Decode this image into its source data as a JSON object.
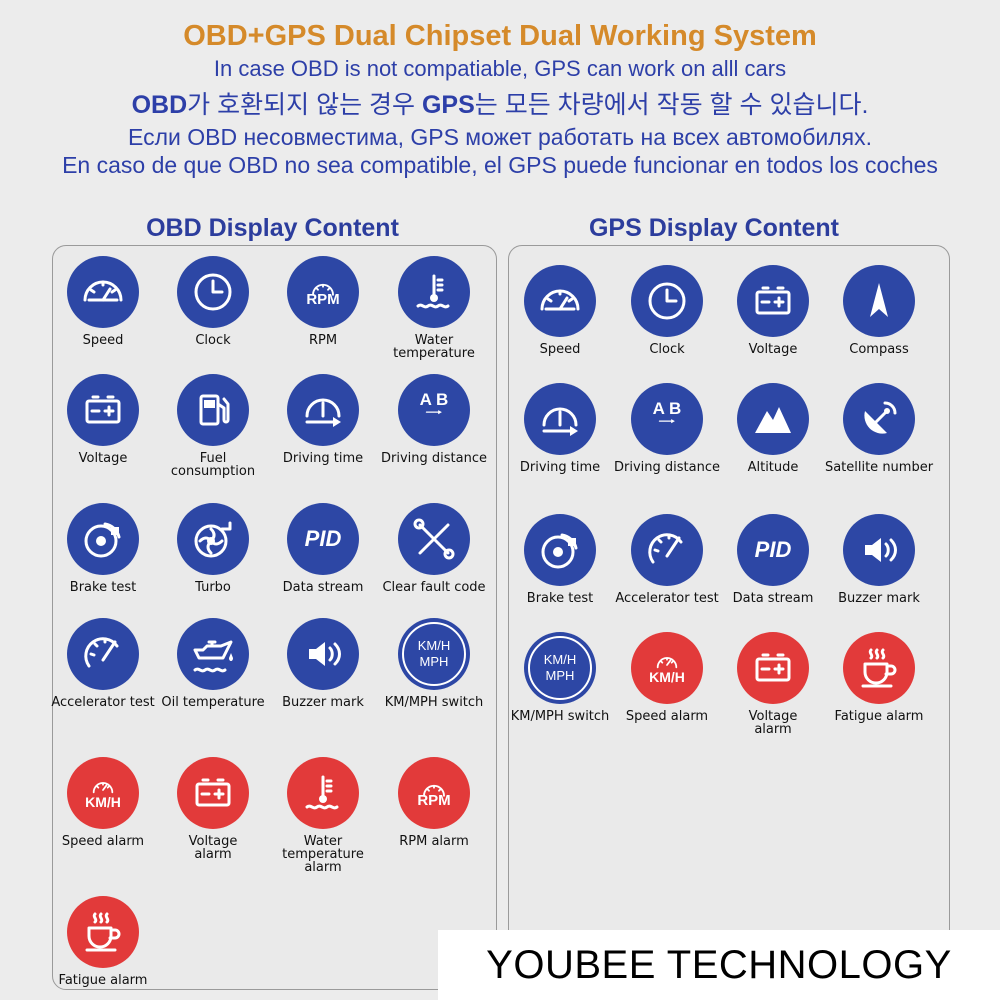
{
  "header": {
    "title": "OBD+GPS Dual Chipset Dual Working System",
    "line_en": "In case OBD is not compatiable, GPS can work on alll cars",
    "line_ko_1": "OBD",
    "line_ko_2": "가 호환되지 않는 경우 ",
    "line_ko_3": "GPS",
    "line_ko_4": "는 모든 차량에서 작동 할 수 있습니다.",
    "line_ru": "Если OBD несовместима, GPS может работать на всех автомобилях.",
    "line_es": "En caso de que OBD no sea compatible, el GPS puede funcionar en todos los coches"
  },
  "obd": {
    "title": "OBD Display Content",
    "items": [
      {
        "label": "Speed",
        "icon": "speedometer-icon",
        "color": "blue"
      },
      {
        "label": "Clock",
        "icon": "clock-icon",
        "color": "blue"
      },
      {
        "label": "RPM",
        "icon": "rpm-gauge-icon",
        "color": "blue"
      },
      {
        "label": "Water\ntemperature",
        "icon": "water-temperature-icon",
        "color": "blue"
      },
      {
        "label": "Voltage",
        "icon": "battery-icon",
        "color": "blue"
      },
      {
        "label": "Fuel\nconsumption",
        "icon": "fuel-pump-icon",
        "color": "blue"
      },
      {
        "label": "Driving time",
        "icon": "driving-time-icon",
        "color": "blue"
      },
      {
        "label": "Driving distance",
        "icon": "ab-distance-icon",
        "color": "blue"
      },
      {
        "label": "Brake test",
        "icon": "brake-disc-icon",
        "color": "blue"
      },
      {
        "label": "Turbo",
        "icon": "turbo-icon",
        "color": "blue"
      },
      {
        "label": "Data stream",
        "icon": "pid-icon",
        "color": "blue"
      },
      {
        "label": "Clear fault code",
        "icon": "wrench-cross-icon",
        "color": "blue"
      },
      {
        "label": "Accelerator test",
        "icon": "accelerator-gauge-icon",
        "color": "blue"
      },
      {
        "label": "Oil temperature",
        "icon": "oil-can-icon",
        "color": "blue"
      },
      {
        "label": "Buzzer mark",
        "icon": "speaker-icon",
        "color": "blue"
      },
      {
        "label": "KM/MPH switch",
        "icon": "kmh-mph-icon",
        "color": "blue"
      },
      {
        "label": "Speed alarm",
        "icon": "speed-alarm-icon",
        "color": "red"
      },
      {
        "label": "Voltage\nalarm",
        "icon": "battery-icon",
        "color": "red"
      },
      {
        "label": "Water\ntemperature alarm",
        "icon": "water-temperature-icon",
        "color": "red"
      },
      {
        "label": "RPM alarm",
        "icon": "rpm-gauge-icon",
        "color": "red"
      },
      {
        "label": "Fatigue alarm",
        "icon": "coffee-cup-icon",
        "color": "red"
      }
    ]
  },
  "gps": {
    "title": "GPS Display Content",
    "items": [
      {
        "label": "Speed",
        "icon": "speedometer-icon",
        "color": "blue"
      },
      {
        "label": "Clock",
        "icon": "clock-icon",
        "color": "blue"
      },
      {
        "label": "Voltage",
        "icon": "battery-icon",
        "color": "blue"
      },
      {
        "label": "Compass",
        "icon": "compass-icon",
        "color": "blue"
      },
      {
        "label": "Driving time",
        "icon": "driving-time-icon",
        "color": "blue"
      },
      {
        "label": "Driving distance",
        "icon": "ab-distance-icon",
        "color": "blue"
      },
      {
        "label": "Altitude",
        "icon": "mountain-icon",
        "color": "blue"
      },
      {
        "label": "Satellite number",
        "icon": "satellite-dish-icon",
        "color": "blue"
      },
      {
        "label": "Brake test",
        "icon": "brake-disc-icon",
        "color": "blue"
      },
      {
        "label": "Accelerator test",
        "icon": "accelerator-gauge-icon",
        "color": "blue"
      },
      {
        "label": "Data stream",
        "icon": "pid-icon",
        "color": "blue"
      },
      {
        "label": "Buzzer mark",
        "icon": "speaker-icon",
        "color": "blue"
      },
      {
        "label": "KM/MPH switch",
        "icon": "kmh-mph-icon",
        "color": "blue"
      },
      {
        "label": "Speed alarm",
        "icon": "speed-alarm-icon",
        "color": "red"
      },
      {
        "label": "Voltage\nalarm",
        "icon": "battery-icon",
        "color": "red"
      },
      {
        "label": "Fatigue alarm",
        "icon": "coffee-cup-icon",
        "color": "red"
      }
    ]
  },
  "icon_text": {
    "rpm": "RPM",
    "pid": "PID",
    "ab": "A B",
    "kmh": "KM/H",
    "mph": "MPH"
  },
  "colors": {
    "blue": "#2d47a5",
    "red": "#e23a3a",
    "title": "#d58a2a",
    "text_blue": "#2d3fa8"
  },
  "brand": "YOUBEE TECHNOLOGY"
}
